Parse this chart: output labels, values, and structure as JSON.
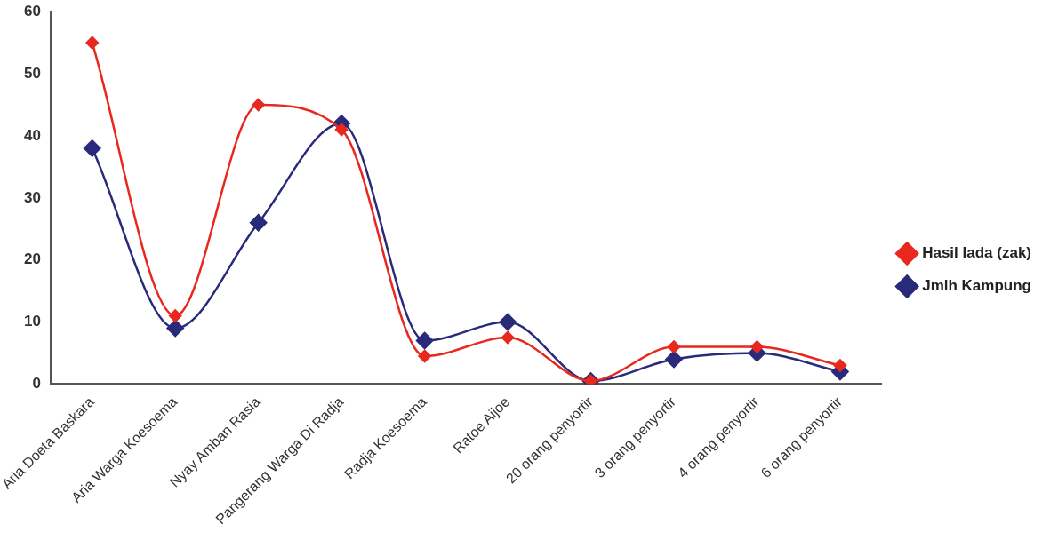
{
  "chart_data": {
    "type": "line",
    "categories": [
      "Aria Doeta Baskara",
      "Aria Warga Koesoema",
      "Nyay Amban Rasia",
      "Pangerang Warga Di Radja",
      "Radja Koesoema",
      "Ratoe Aijoe",
      "20 orang penyortir",
      "3 orang penyortir",
      "4 orang penyortir",
      "6 orang penyortir"
    ],
    "series": [
      {
        "name": "Hasil lada (zak)",
        "color": "#e8281e",
        "values": [
          55,
          11,
          45,
          41,
          4.5,
          7.5,
          0.5,
          6,
          6,
          3
        ]
      },
      {
        "name": "Jmlh Kampung",
        "color": "#2a2a7a",
        "values": [
          38,
          9,
          26,
          42,
          7,
          10,
          0.5,
          4,
          5,
          2
        ]
      }
    ],
    "ylim": [
      0,
      60
    ],
    "yticks": [
      0,
      10,
      20,
      30,
      40,
      50,
      60
    ],
    "grid": false,
    "legend": "right",
    "marker": "diamond",
    "line_style": "solid"
  }
}
